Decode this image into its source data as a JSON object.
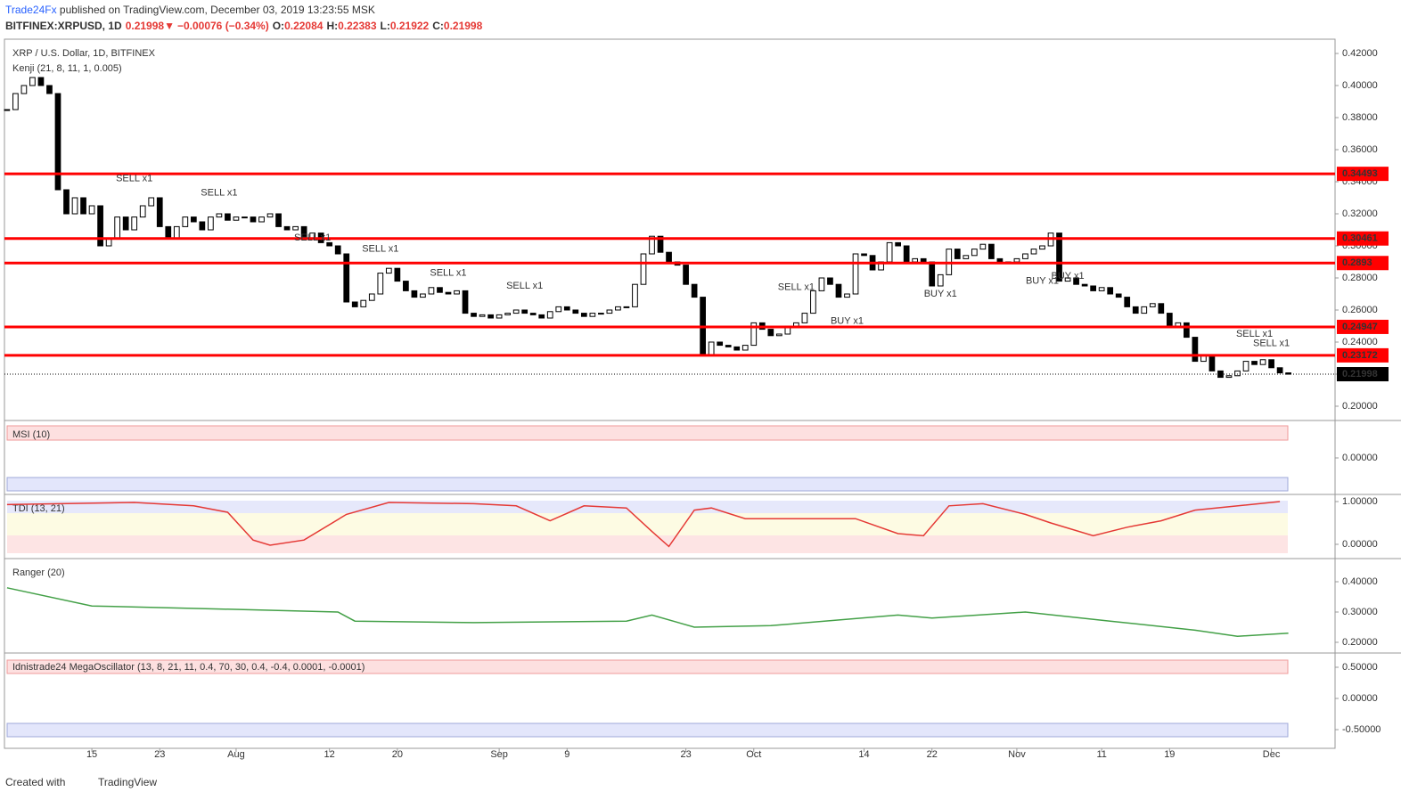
{
  "header": {
    "publisher": "Trade24Fx",
    "published": " published on TradingView.com, December 03, 2019 13:23:55 MSK",
    "symbol": "BITFINEX:XRPUSD, 1D",
    "price": "0.21998",
    "arrow": "▼",
    "change": "−0.00076 (−0.34%)",
    "ohlc": [
      {
        "label": "O:",
        "value": "0.22084"
      },
      {
        "label": "H:",
        "value": "0.22383"
      },
      {
        "label": "L:",
        "value": "0.21922"
      },
      {
        "label": "C:",
        "value": "0.21998"
      }
    ]
  },
  "footer": {
    "created": "Created with",
    "brand": "TradingView"
  },
  "chart_data": {
    "type": "candlestick",
    "title": "XRP / U.S. Dollar, 1D, BITFINEX",
    "subtitle": "Kenji (21, 8, 11, 1, 0.005)",
    "x": [
      5,
      6,
      7,
      8,
      9,
      10,
      11,
      12,
      13,
      14,
      15,
      16,
      17,
      18,
      19,
      20,
      21,
      22,
      23,
      24,
      25,
      26,
      27,
      28,
      29,
      30,
      31,
      32,
      33,
      34,
      35,
      36,
      37,
      38,
      39,
      40,
      41,
      42,
      43,
      44,
      45,
      46,
      47,
      48,
      49,
      50,
      51,
      52,
      53,
      54,
      55,
      56,
      57,
      58,
      59,
      60,
      61,
      62,
      63,
      64,
      65,
      66,
      67,
      68,
      69,
      70,
      71,
      72,
      73,
      74,
      75,
      76,
      77,
      78,
      79,
      80,
      81,
      82,
      83,
      84,
      85,
      86,
      87,
      88,
      89,
      90,
      91,
      92,
      93,
      94,
      95,
      96,
      97,
      98,
      99,
      100,
      101,
      102,
      103,
      104,
      105,
      106,
      107,
      108,
      109,
      110,
      111,
      112,
      113,
      114,
      115,
      116,
      117,
      118,
      119,
      120,
      121,
      122,
      123,
      124,
      125,
      126,
      127,
      128,
      129,
      130,
      131,
      132,
      133,
      134,
      135,
      136,
      137,
      138,
      139,
      140,
      141,
      142,
      143,
      144,
      145,
      146,
      147,
      148,
      149,
      150,
      151,
      152,
      153,
      154,
      155,
      156
    ],
    "values": [
      0.385,
      0.395,
      0.4,
      0.405,
      0.4,
      0.395,
      0.335,
      0.32,
      0.33,
      0.32,
      0.325,
      0.3,
      0.305,
      0.318,
      0.31,
      0.318,
      0.325,
      0.33,
      0.312,
      0.305,
      0.312,
      0.318,
      0.315,
      0.31,
      0.318,
      0.32,
      0.316,
      0.318,
      0.318,
      0.315,
      0.318,
      0.32,
      0.312,
      0.31,
      0.312,
      0.305,
      0.308,
      0.302,
      0.3,
      0.295,
      0.265,
      0.262,
      0.266,
      0.27,
      0.283,
      0.286,
      0.278,
      0.272,
      0.268,
      0.27,
      0.274,
      0.271,
      0.27,
      0.272,
      0.258,
      0.256,
      0.257,
      0.255,
      0.257,
      0.258,
      0.26,
      0.258,
      0.257,
      0.255,
      0.259,
      0.262,
      0.26,
      0.258,
      0.256,
      0.258,
      0.258,
      0.26,
      0.262,
      0.262,
      0.276,
      0.295,
      0.306,
      0.296,
      0.29,
      0.288,
      0.276,
      0.268,
      0.232,
      0.24,
      0.238,
      0.237,
      0.235,
      0.238,
      0.252,
      0.248,
      0.244,
      0.245,
      0.25,
      0.252,
      0.258,
      0.272,
      0.28,
      0.276,
      0.268,
      0.27,
      0.295,
      0.294,
      0.285,
      0.29,
      0.302,
      0.3,
      0.29,
      0.292,
      0.29,
      0.275,
      0.282,
      0.298,
      0.292,
      0.294,
      0.298,
      0.301,
      0.292,
      0.29,
      0.29,
      0.292,
      0.295,
      0.298,
      0.3,
      0.308,
      0.278,
      0.28,
      0.276,
      0.275,
      0.272,
      0.274,
      0.27,
      0.268,
      0.262,
      0.258,
      0.262,
      0.264,
      0.258,
      0.25,
      0.252,
      0.243,
      0.228,
      0.232,
      0.222,
      0.218,
      0.219,
      0.222,
      0.228,
      0.226,
      0.229,
      0.224,
      0.2208,
      0.21998
    ],
    "xlim": [
      4.7,
      161.5
    ],
    "xticks": [
      {
        "value": 15,
        "label": "15"
      },
      {
        "value": 23,
        "label": "23"
      },
      {
        "value": 32,
        "label": "Aug"
      },
      {
        "value": 43,
        "label": "12"
      },
      {
        "value": 51,
        "label": "20"
      },
      {
        "value": 63,
        "label": "Sep"
      },
      {
        "value": 71,
        "label": "9"
      },
      {
        "value": 85,
        "label": "23"
      },
      {
        "value": 93,
        "label": "Oct"
      },
      {
        "value": 106,
        "label": "14"
      },
      {
        "value": 114,
        "label": "22"
      },
      {
        "value": 124,
        "label": "Nov"
      },
      {
        "value": 134,
        "label": "11"
      },
      {
        "value": 142,
        "label": "19"
      },
      {
        "value": 154,
        "label": "Dec"
      }
    ],
    "ylim": [
      0.1911,
      0.4289
    ],
    "yticks": [
      {
        "value": 0.2,
        "label": "0.20000"
      },
      {
        "value": 0.22,
        "label": "0.22000"
      },
      {
        "value": 0.24,
        "label": "0.24000"
      },
      {
        "value": 0.26,
        "label": "0.26000"
      },
      {
        "value": 0.28,
        "label": "0.28000"
      },
      {
        "value": 0.3,
        "label": "0.30000"
      },
      {
        "value": 0.32,
        "label": "0.32000"
      },
      {
        "value": 0.34,
        "label": "0.34000"
      },
      {
        "value": 0.36,
        "label": "0.36000"
      },
      {
        "value": 0.38,
        "label": "0.38000"
      },
      {
        "value": 0.4,
        "label": "0.40000"
      },
      {
        "value": 0.42,
        "label": "0.42000"
      }
    ],
    "levels": [
      0.34493,
      0.30461,
      0.2893,
      0.24947,
      0.23172
    ],
    "level_color": "#ff0000",
    "last": 0.21998,
    "up_color": "#ffffff",
    "down_color": "#000000",
    "annotations": [
      {
        "text": "SELL x1",
        "x": 20,
        "value": 0.342,
        "color": "#ef5350"
      },
      {
        "text": "SELL x1",
        "x": 30,
        "value": 0.333,
        "color": "#ef5350"
      },
      {
        "text": "SELL x1",
        "x": 41,
        "value": 0.305,
        "color": "#ef5350"
      },
      {
        "text": "SELL x1",
        "x": 49,
        "value": 0.298,
        "color": "#ef5350"
      },
      {
        "text": "SELL x1",
        "x": 57,
        "value": 0.283,
        "color": "#ef5350"
      },
      {
        "text": "SELL x1",
        "x": 66,
        "value": 0.275,
        "color": "#ef5350"
      },
      {
        "text": "SELL x1",
        "x": 98,
        "value": 0.274,
        "color": "#ef5350"
      },
      {
        "text": "BUY x1",
        "x": 104,
        "value": 0.253,
        "color": "#5b6ee1"
      },
      {
        "text": "BUY x1",
        "x": 115,
        "value": 0.27,
        "color": "#5b6ee1"
      },
      {
        "text": "BUY x1",
        "x": 127,
        "value": 0.278,
        "color": "#5b6ee1"
      },
      {
        "text": "BUY x1",
        "x": 130,
        "value": 0.281,
        "color": "#5b6ee1"
      },
      {
        "text": "SELL x1",
        "x": 152,
        "value": 0.245,
        "color": "#ef5350"
      },
      {
        "text": "SELL x1",
        "x": 154,
        "value": 0.239,
        "color": "#ef5350"
      }
    ],
    "panes": [
      {
        "title": "MSI (10)",
        "ylim": [
          -1,
          1
        ],
        "yticks": [
          {
            "value": 0,
            "label": "0.00000"
          }
        ]
      },
      {
        "title": "TDI (13, 21)",
        "ylim": [
          -0.3125,
          1.125
        ],
        "yticks": [
          {
            "value": 1,
            "label": "1.00000"
          },
          {
            "value": 0,
            "label": "0.00000"
          }
        ],
        "color": "#e53935",
        "x": [
          5,
          20,
          27,
          31,
          34,
          36,
          40,
          45,
          50,
          60,
          65,
          69,
          73,
          78,
          81,
          83,
          86,
          88,
          92,
          105,
          110,
          113,
          116,
          120,
          125,
          128,
          133,
          137,
          141,
          145,
          155
        ],
        "values": [
          0.93,
          0.98,
          0.9,
          0.75,
          0.1,
          -0.02,
          0.1,
          0.7,
          0.98,
          0.95,
          0.9,
          0.55,
          0.9,
          0.85,
          0.3,
          -0.05,
          0.8,
          0.85,
          0.6,
          0.6,
          0.25,
          0.2,
          0.9,
          0.95,
          0.7,
          0.5,
          0.2,
          0.4,
          0.55,
          0.8,
          1.0
        ]
      },
      {
        "title": "Ranger (20)",
        "ylim": [
          0.1676,
          0.4706
        ],
        "yticks": [
          {
            "value": 0.4,
            "label": "0.40000"
          },
          {
            "value": 0.3,
            "label": "0.30000"
          },
          {
            "value": 0.2,
            "label": "0.20000"
          }
        ],
        "color": "#43a047",
        "x": [
          5,
          15,
          30,
          44,
          46,
          60,
          78,
          81,
          86,
          95,
          110,
          114,
          125,
          135,
          145,
          150,
          156
        ],
        "values": [
          0.38,
          0.32,
          0.31,
          0.3,
          0.27,
          0.265,
          0.27,
          0.29,
          0.25,
          0.255,
          0.29,
          0.28,
          0.3,
          0.27,
          0.24,
          0.22,
          0.23
        ]
      },
      {
        "title": "Idnistrade24 MegaOscillator (13, 8, 21, 11, 0.4, 70, 30, 0.4, -0.4, 0.0001, -0.0001)",
        "ylim": [
          -0.771,
          0.7
        ],
        "yticks": [
          {
            "value": 0.5,
            "label": "0.50000"
          },
          {
            "value": 0,
            "label": "0.00000"
          },
          {
            "value": -0.5,
            "label": "-0.50000"
          }
        ]
      }
    ]
  }
}
